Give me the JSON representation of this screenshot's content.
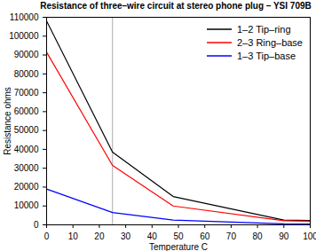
{
  "chart_data": {
    "type": "line",
    "title": "Resistance of three–wire circuit at stereo phone plug – YSI 709B",
    "x_label": "Temperature C",
    "y_label": "Resistance ohms",
    "x": [
      0,
      25,
      48,
      90,
      100
    ],
    "series": [
      {
        "name": "1–2 Tip–ring",
        "color": "#000000",
        "values": [
          108000,
          38500,
          15000,
          2500,
          2300
        ]
      },
      {
        "name": "2–3 Ring–base",
        "color": "#ff0000",
        "values": [
          91500,
          31500,
          10000,
          2200,
          1900
        ]
      },
      {
        "name": "1–3 Tip–base",
        "color": "#0000ff",
        "values": [
          19000,
          6500,
          2500,
          500,
          400
        ]
      }
    ],
    "vline": 25,
    "xlim": [
      0,
      100
    ],
    "xticks": [
      0,
      10,
      20,
      30,
      40,
      50,
      60,
      70,
      80,
      90,
      100
    ],
    "ylim": [
      0,
      110000
    ],
    "yticks": [
      0,
      10000,
      20000,
      30000,
      40000,
      50000,
      60000,
      70000,
      80000,
      90000,
      100000,
      110000
    ],
    "grid": false,
    "legend": "upper right"
  }
}
